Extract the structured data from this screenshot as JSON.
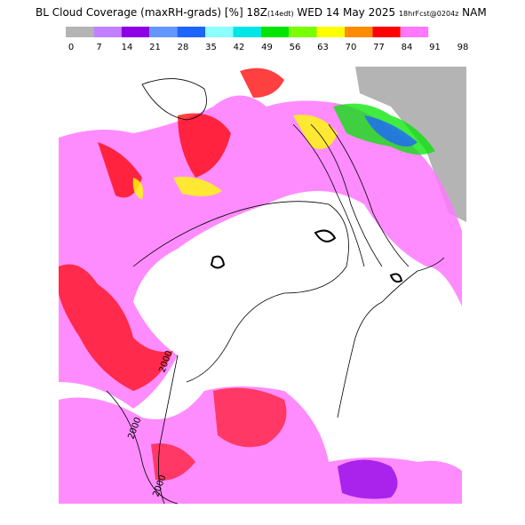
{
  "header": {
    "title_parts": [
      "BL Cloud Coverage (maxRH-grads) [%] 18Z",
      "(14edt)",
      " WED 14 May 2025 ",
      "18hrFcst@0204z",
      " NAM"
    ]
  },
  "colorbar": {
    "colors": [
      "#b4b4b4",
      "#c080ff",
      "#8c00e6",
      "#6496ff",
      "#1e64ff",
      "#8cffff",
      "#00e6e6",
      "#00e600",
      "#78ff00",
      "#ffff00",
      "#ff8c00",
      "#ff0000",
      "#ff78ff"
    ],
    "labels": [
      "0",
      "7",
      "14",
      "21",
      "28",
      "35",
      "42",
      "49",
      "56",
      "63",
      "70",
      "77",
      "84",
      "91",
      "98"
    ]
  },
  "map": {
    "contour_labels": [
      "2000",
      "2000",
      "2000"
    ]
  }
}
